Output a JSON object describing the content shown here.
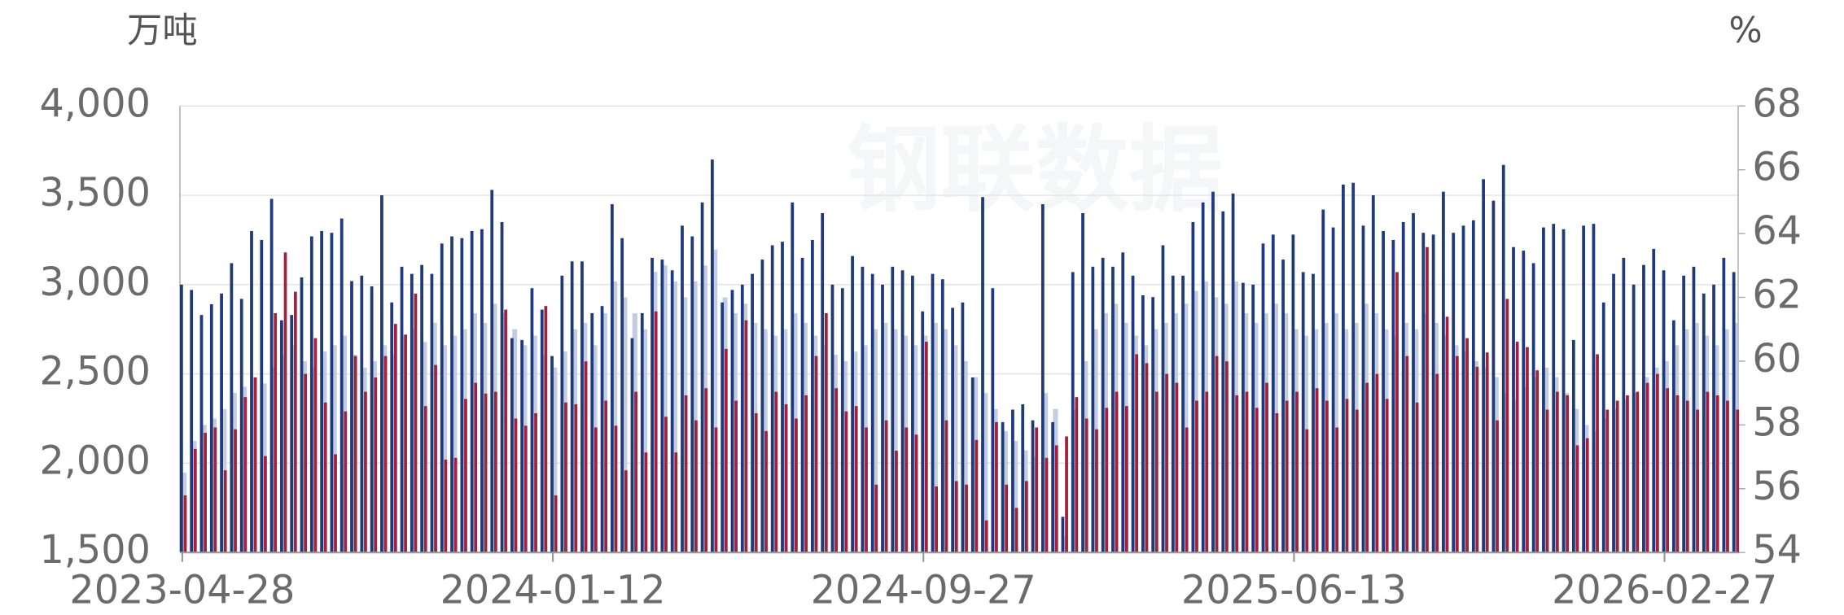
{
  "chart_data": {
    "type": "bar",
    "y_unit": "万吨",
    "y2_unit": "%",
    "watermark": "钢联数据",
    "categories": [
      "2023-04-28",
      null,
      null,
      null,
      null,
      null,
      null,
      null,
      null,
      null,
      null,
      null,
      null,
      null,
      null,
      null,
      null,
      null,
      null,
      null,
      null,
      null,
      null,
      null,
      null,
      null,
      null,
      null,
      null,
      null,
      null,
      null,
      null,
      null,
      null,
      null,
      null,
      "2024-01-12",
      null,
      null,
      null,
      null,
      null,
      null,
      null,
      null,
      null,
      null,
      null,
      null,
      null,
      null,
      null,
      null,
      null,
      null,
      null,
      null,
      null,
      null,
      null,
      null,
      null,
      null,
      null,
      null,
      null,
      null,
      null,
      null,
      null,
      null,
      null,
      null,
      "2024-09-27",
      null,
      null,
      null,
      null,
      null,
      null,
      null,
      null,
      null,
      null,
      null,
      null,
      null,
      null,
      null,
      null,
      null,
      null,
      null,
      null,
      null,
      null,
      null,
      null,
      null,
      null,
      null,
      null,
      null,
      null,
      null,
      null,
      null,
      null,
      null,
      null,
      "2025-06-13",
      null,
      null,
      null,
      null,
      null,
      null,
      null,
      null,
      null,
      null,
      null,
      null,
      null,
      null,
      null,
      null,
      null,
      null,
      null,
      null,
      null,
      null,
      null,
      null,
      null,
      null,
      null,
      null,
      null,
      null,
      null,
      null,
      null,
      null,
      null,
      null,
      "2026-02-27",
      null,
      null,
      null,
      null,
      null,
      null,
      null
    ],
    "series": [
      {
        "color": "#b9c4dc",
        "axis": "y2",
        "values": [
          56.5,
          57.5,
          58,
          58.2,
          58.5,
          59,
          59.2,
          59.5,
          59.3,
          59.8,
          60.2,
          60.5,
          60.0,
          59.8,
          60.3,
          60.5,
          60.8,
          60.2,
          59.8,
          60.0,
          60.5,
          60.2,
          60.8,
          61.0,
          60.6,
          61.2,
          60.5,
          60.8,
          61.0,
          61.5,
          61.2,
          61.8,
          61.5,
          61.0,
          60.5,
          60.8,
          60.2,
          59.8,
          60.3,
          61.0,
          61.2,
          60.5,
          61.5,
          62.5,
          62.0,
          61.5,
          61.0,
          62.8,
          63.0,
          62.5,
          62.0,
          62.5,
          63.0,
          63.5,
          62.0,
          61.5,
          61.8,
          61.2,
          61.0,
          60.8,
          61.0,
          61.5,
          61.2,
          60.8,
          60.5,
          60.2,
          60.0,
          60.3,
          60.5,
          61.0,
          61.2,
          61.0,
          60.8,
          60.5,
          60.8,
          61.2,
          61.0,
          60.5,
          60.0,
          59.5,
          59.0,
          58.5,
          57.8,
          57.5,
          57.2,
          57.0,
          59.0,
          58.5,
          54.5,
          58.5,
          60.0,
          61.0,
          61.5,
          61.8,
          61.2,
          60.8,
          60.5,
          61.0,
          61.2,
          61.5,
          61.8,
          62.2,
          62.5,
          62.0,
          61.8,
          62.5,
          61.5,
          61.2,
          61.5,
          61.8,
          61.5,
          61.0,
          60.8,
          61.0,
          61.2,
          61.5,
          61.0,
          61.2,
          61.8,
          61.5,
          61.0,
          60.8,
          61.2,
          61.0,
          61.5,
          61.2,
          60.8,
          60.5,
          60.3,
          60.0,
          59.8,
          59.5,
          59.0,
          58.8,
          59.2,
          59.5,
          59.8,
          59.5,
          59.0,
          58.5,
          58.0,
          57.8,
          58.2,
          58.5,
          58.8,
          59.0,
          59.5,
          59.8,
          60.0,
          60.5,
          61.0,
          61.2,
          60.8,
          60.5,
          61.0,
          61.2
        ]
      },
      {
        "color": "#1f3a7a",
        "values": [
          3000,
          2970,
          2830,
          2890,
          2950,
          3120,
          2920,
          3300,
          3250,
          3480,
          2800,
          2830,
          3040,
          3270,
          3300,
          3290,
          3370,
          3020,
          3050,
          2990,
          3500,
          2900,
          3100,
          3060,
          3110,
          3060,
          3230,
          3270,
          3260,
          3300,
          3310,
          3530,
          3350,
          2700,
          2690,
          2980,
          2860,
          2600,
          3050,
          3130,
          3130,
          2840,
          2880,
          3450,
          3260,
          2700,
          2840,
          3150,
          3140,
          3080,
          3330,
          3270,
          3460,
          3700,
          2900,
          2970,
          3000,
          3060,
          3140,
          3220,
          3240,
          3460,
          3150,
          3250,
          3400,
          3000,
          2980,
          3160,
          3100,
          3060,
          3000,
          3100,
          3080,
          3050,
          2850,
          3060,
          3030,
          2870,
          2900,
          2480,
          3490,
          2980,
          2230,
          2300,
          2330,
          2240,
          3450,
          2230,
          1700,
          3070,
          3400,
          3100,
          3150,
          3100,
          3180,
          3050,
          2940,
          2930,
          3220,
          3050,
          3050,
          3350,
          3460,
          3520,
          3410,
          3510,
          3010,
          3000,
          3230,
          3280,
          3140,
          3280,
          3070,
          3060,
          3420,
          3320,
          3560,
          3570,
          3330,
          3500,
          3300,
          3250,
          3350,
          3400,
          3290,
          3280,
          3520,
          3290,
          3330,
          3360,
          3590,
          3470,
          3670,
          3210,
          3190,
          3120,
          3320,
          3340,
          3310,
          2690,
          3330,
          3340,
          2900,
          3060,
          3150,
          3000,
          3110,
          3200,
          3080,
          2800,
          3050,
          3100,
          2950,
          3000,
          3150,
          3070
        ]
      },
      {
        "color": "#a3213c",
        "values": [
          1820,
          2080,
          2170,
          2200,
          1960,
          2190,
          2370,
          2480,
          2040,
          2840,
          3180,
          2960,
          2500,
          2700,
          2340,
          2050,
          2290,
          2600,
          2400,
          2480,
          2600,
          2780,
          2720,
          2950,
          2320,
          2550,
          2020,
          2030,
          2360,
          2450,
          2390,
          2400,
          2860,
          2250,
          2210,
          2280,
          2880,
          1820,
          2340,
          2330,
          2570,
          2200,
          2350,
          2210,
          1960,
          2400,
          2060,
          2850,
          2260,
          2060,
          2380,
          2240,
          2420,
          2200,
          2640,
          2350,
          2800,
          2280,
          2180,
          2400,
          2330,
          2250,
          2380,
          2600,
          2840,
          2420,
          2290,
          2320,
          2200,
          1880,
          2240,
          2070,
          2200,
          2160,
          2680,
          1870,
          2240,
          1900,
          1880,
          2130,
          1680,
          2230,
          1880,
          1750,
          1900,
          2200,
          2030,
          2100,
          2150,
          2370,
          2250,
          2190,
          2310,
          2400,
          2320,
          2610,
          2560,
          2400,
          2500,
          2450,
          2200,
          2350,
          2400,
          2600,
          2570,
          2380,
          2400,
          2310,
          2450,
          2280,
          2350,
          2400,
          2190,
          2420,
          2350,
          2200,
          2360,
          2300,
          2450,
          2500,
          2360,
          3070,
          2600,
          2340,
          3210,
          2500,
          2820,
          2600,
          2700,
          2540,
          2620,
          2240,
          2920,
          2680,
          2650,
          2520,
          2300,
          2400,
          2380,
          2100,
          2140,
          2610,
          2300,
          2350,
          2380,
          2400,
          2450,
          2500,
          2420,
          2380,
          2350,
          2300,
          2400,
          2380,
          2350,
          2300
        ]
      }
    ],
    "ylim": [
      1500,
      4000
    ],
    "yticks": [
      {
        "value": 1500,
        "label": "1,500"
      },
      {
        "value": 2000,
        "label": "2,000"
      },
      {
        "value": 2500,
        "label": "2,500"
      },
      {
        "value": 3000,
        "label": "3,000"
      },
      {
        "value": 3500,
        "label": "3,500"
      },
      {
        "value": 4000,
        "label": "4,000"
      }
    ],
    "y2lim": [
      54,
      68
    ],
    "y2ticks": [
      54,
      56,
      58,
      60,
      62,
      64,
      66,
      68
    ],
    "grid": true
  }
}
